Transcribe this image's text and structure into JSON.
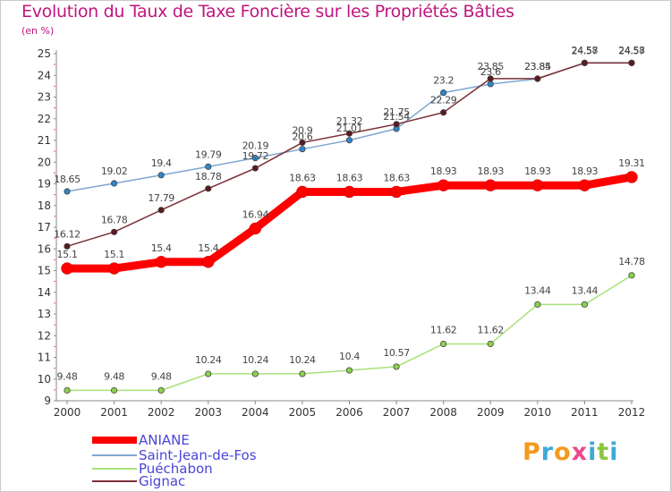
{
  "title": "Evolution du Taux de Taxe Foncière sur les Propriétés Bâties",
  "subtitle": "(en %)",
  "logo": {
    "text": "Proxiti",
    "colors": [
      "#f39a1e",
      "#3da9d6",
      "#f39a1e",
      "#e94b8a",
      "#3da9d6",
      "#8cc63f",
      "#3da9d6"
    ]
  },
  "chart_data": {
    "type": "line",
    "x": [
      "2000",
      "2001",
      "2002",
      "2003",
      "2004",
      "2005",
      "2006",
      "2007",
      "2008",
      "2009",
      "2010",
      "2011",
      "2012"
    ],
    "ylim": [
      9,
      25
    ],
    "yticks": [
      "9",
      "10",
      "11",
      "12",
      "13",
      "14",
      "15",
      "16",
      "17",
      "18",
      "19",
      "20",
      "21",
      "22",
      "23",
      "24",
      "25"
    ],
    "grid": false,
    "legend_position": "bottom-left",
    "series": [
      {
        "name": "ANIANE",
        "color": "#ff0000",
        "thick": true,
        "values": [
          15.1,
          15.1,
          15.4,
          15.4,
          16.94,
          18.63,
          18.63,
          18.63,
          18.93,
          18.93,
          18.93,
          18.93,
          19.31
        ],
        "labels": [
          "15.1",
          "15.1",
          "15.4",
          "15.4",
          "16.94",
          "18.63",
          "18.63",
          "18.63",
          "18.93",
          "18.93",
          "18.93",
          "18.93",
          "19.31"
        ]
      },
      {
        "name": "Saint-Jean-de-Fos",
        "color": "#7fa6d1",
        "marker": "#2f86c9",
        "values": [
          18.65,
          19.02,
          19.4,
          19.79,
          20.19,
          20.6,
          21.01,
          21.54,
          23.2,
          23.6,
          23.84,
          24.58,
          24.58
        ],
        "labels": [
          "18.65",
          "19.02",
          "19.4",
          "19.79",
          "20.19",
          "20.6",
          "21.01",
          "21.54",
          "23.2",
          "23.6",
          "23.84",
          "24.58",
          "24.58"
        ]
      },
      {
        "name": "Puéchabon",
        "color": "#a8e07a",
        "marker": "#8cd14d",
        "values": [
          9.48,
          9.48,
          9.48,
          10.24,
          10.24,
          10.24,
          10.4,
          10.57,
          11.62,
          11.62,
          13.44,
          13.44,
          14.78
        ],
        "labels": [
          "9.48",
          "9.48",
          "9.48",
          "10.24",
          "10.24",
          "10.24",
          "10.4",
          "10.57",
          "11.62",
          "11.62",
          "13.44",
          "13.44",
          "14.78"
        ]
      },
      {
        "name": "Gignac",
        "color": "#7a2f35",
        "marker": "#5a1a20",
        "values": [
          16.12,
          16.78,
          17.79,
          18.78,
          19.72,
          20.9,
          21.32,
          21.75,
          22.29,
          23.85,
          23.85,
          24.57,
          24.57
        ],
        "labels": [
          "16.12",
          "16.78",
          "17.79",
          "18.78",
          "19.72",
          "20.9",
          "21.32",
          "21.75",
          "22.29",
          "23.85",
          "23.85",
          "24.57",
          "24.57"
        ]
      }
    ]
  }
}
